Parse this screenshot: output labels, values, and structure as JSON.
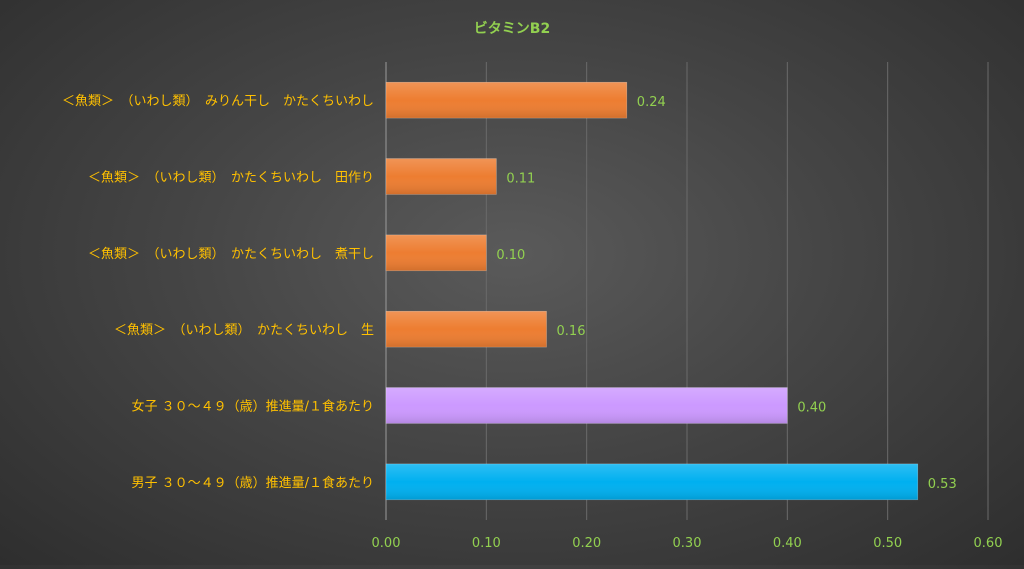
{
  "chart_data": {
    "type": "bar",
    "orientation": "horizontal",
    "title": "ビタミンB2",
    "categories": [
      "＜魚類＞　（いわし類）　みりん干し　かたくちいわし",
      "＜魚類＞　（いわし類）　かたくちいわし　田作り",
      "＜魚類＞　（いわし類）　かたくちいわし　煮干し",
      "＜魚類＞　（いわし類）　かたくちいわし　生",
      "女子 ３０～４９（歳）推進量/１食あたり",
      "男子 ３０～４９（歳）推進量/１食あたり"
    ],
    "values": [
      0.24,
      0.11,
      0.1,
      0.16,
      0.4,
      0.53
    ],
    "value_labels": [
      "0.24",
      "0.11",
      "0.10",
      "0.16",
      "0.40",
      "0.53"
    ],
    "bar_colors": [
      "#ed7d31",
      "#ed7d31",
      "#ed7d31",
      "#ed7d31",
      "#cc99ff",
      "#00b0f0"
    ],
    "xlim": [
      0,
      0.6
    ],
    "xticks": [
      "0.00",
      "0.10",
      "0.20",
      "0.30",
      "0.40",
      "0.50",
      "0.60"
    ],
    "grid": true,
    "legend": "none",
    "colors": {
      "title": "#92d050",
      "category_label": "#ffc000",
      "value_label": "#92d050",
      "tick_label": "#92d050",
      "gridline": "#6a6a6a"
    }
  }
}
